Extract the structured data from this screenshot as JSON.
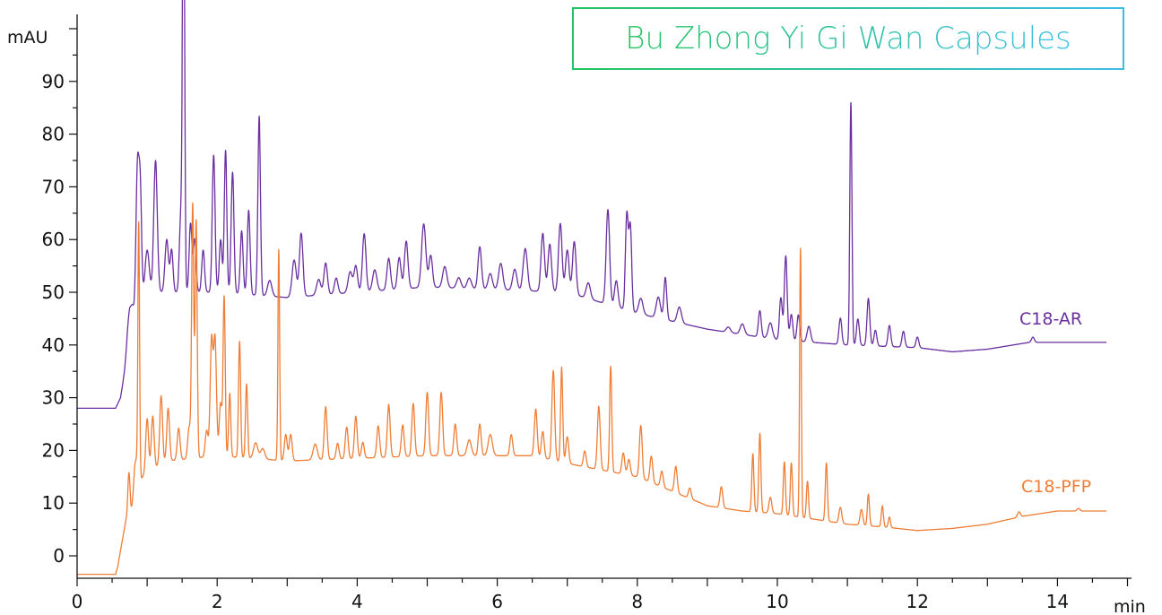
{
  "chart_data": {
    "type": "line",
    "title": "Bu Zhong Yi Gi Wan Capsules",
    "xlabel": "min",
    "ylabel": "mAU",
    "xlim": [
      0,
      15
    ],
    "ylim": [
      -5,
      100
    ],
    "x_ticks": [
      0,
      2,
      4,
      6,
      8,
      10,
      12,
      14
    ],
    "y_ticks": [
      0,
      10,
      20,
      30,
      40,
      50,
      60,
      70,
      80,
      90
    ],
    "grid": false,
    "legend": "inline labels at right end of traces",
    "series": [
      {
        "name": "C18-AR",
        "color": "#6a2fa0",
        "baseline": [
          [
            0,
            28
          ],
          [
            0.55,
            28
          ],
          [
            0.62,
            30
          ],
          [
            0.68,
            35
          ],
          [
            0.75,
            43
          ],
          [
            0.85,
            47
          ],
          [
            1.0,
            50
          ],
          [
            2.0,
            50
          ],
          [
            3.0,
            49
          ],
          [
            5.0,
            51
          ],
          [
            7.0,
            50
          ],
          [
            8.0,
            46
          ],
          [
            9.0,
            43
          ],
          [
            10.0,
            41
          ],
          [
            11.0,
            40
          ],
          [
            12.0,
            39.5
          ],
          [
            12.5,
            38.7
          ],
          [
            13.0,
            39.2
          ],
          [
            13.6,
            40.5
          ],
          [
            14.7,
            40.5
          ]
        ],
        "peaks": [
          [
            0.74,
            4,
            0.03
          ],
          [
            0.79,
            2,
            0.02
          ],
          [
            0.86,
            25,
            0.02
          ],
          [
            0.9,
            22,
            0.02
          ],
          [
            1.0,
            8,
            0.03
          ],
          [
            1.12,
            25,
            0.025
          ],
          [
            1.28,
            10,
            0.025
          ],
          [
            1.35,
            8,
            0.02
          ],
          [
            1.48,
            14,
            0.02
          ],
          [
            1.52,
            88,
            0.015
          ],
          [
            1.62,
            13,
            0.02
          ],
          [
            1.68,
            10,
            0.02
          ],
          [
            1.8,
            8,
            0.02
          ],
          [
            1.95,
            26,
            0.02
          ],
          [
            2.05,
            10,
            0.02
          ],
          [
            2.12,
            27,
            0.018
          ],
          [
            2.22,
            23,
            0.02
          ],
          [
            2.35,
            12,
            0.02
          ],
          [
            2.45,
            16,
            0.02
          ],
          [
            2.6,
            34,
            0.018
          ],
          [
            2.75,
            3,
            0.03
          ],
          [
            3.1,
            7,
            0.03
          ],
          [
            3.2,
            12,
            0.025
          ],
          [
            3.45,
            3,
            0.03
          ],
          [
            3.55,
            6,
            0.025
          ],
          [
            3.7,
            3,
            0.025
          ],
          [
            3.9,
            4,
            0.03
          ],
          [
            3.98,
            5,
            0.025
          ],
          [
            4.1,
            11,
            0.025
          ],
          [
            4.25,
            4,
            0.03
          ],
          [
            4.45,
            6,
            0.025
          ],
          [
            4.6,
            6,
            0.025
          ],
          [
            4.7,
            9,
            0.025
          ],
          [
            4.95,
            12,
            0.03
          ],
          [
            5.05,
            6,
            0.025
          ],
          [
            5.25,
            4,
            0.03
          ],
          [
            5.45,
            2,
            0.03
          ],
          [
            5.6,
            2,
            0.03
          ],
          [
            5.75,
            8,
            0.025
          ],
          [
            5.9,
            3,
            0.03
          ],
          [
            6.05,
            5,
            0.03
          ],
          [
            6.25,
            4,
            0.03
          ],
          [
            6.4,
            8,
            0.03
          ],
          [
            6.65,
            11,
            0.025
          ],
          [
            6.75,
            9,
            0.025
          ],
          [
            6.9,
            13,
            0.025
          ],
          [
            7.0,
            8,
            0.025
          ],
          [
            7.1,
            10,
            0.025
          ],
          [
            7.3,
            3,
            0.03
          ],
          [
            7.58,
            18,
            0.025
          ],
          [
            7.7,
            5,
            0.025
          ],
          [
            7.85,
            18,
            0.02
          ],
          [
            7.9,
            16,
            0.02
          ],
          [
            8.05,
            3,
            0.03
          ],
          [
            8.3,
            4,
            0.03
          ],
          [
            8.4,
            8,
            0.02
          ],
          [
            8.6,
            3,
            0.03
          ],
          [
            9.3,
            1,
            0.03
          ],
          [
            9.5,
            2,
            0.03
          ],
          [
            9.75,
            5,
            0.02
          ],
          [
            9.9,
            3,
            0.03
          ],
          [
            10.05,
            8,
            0.02
          ],
          [
            10.12,
            16,
            0.02
          ],
          [
            10.2,
            5,
            0.02
          ],
          [
            10.3,
            5,
            0.02
          ],
          [
            10.45,
            3,
            0.025
          ],
          [
            10.9,
            5,
            0.02
          ],
          [
            11.05,
            46,
            0.015
          ],
          [
            11.15,
            5,
            0.02
          ],
          [
            11.3,
            9,
            0.02
          ],
          [
            11.4,
            3,
            0.02
          ],
          [
            11.6,
            4,
            0.02
          ],
          [
            11.8,
            3,
            0.02
          ],
          [
            12.0,
            2,
            0.02
          ],
          [
            13.65,
            1,
            0.02
          ]
        ]
      },
      {
        "name": "C18-PFP",
        "color": "#ef7d35",
        "baseline": [
          [
            0,
            -3.5
          ],
          [
            0.55,
            -3.5
          ],
          [
            0.58,
            -2
          ],
          [
            0.62,
            1
          ],
          [
            0.7,
            7
          ],
          [
            0.8,
            9
          ],
          [
            0.88,
            14
          ],
          [
            1.0,
            16
          ],
          [
            1.3,
            18
          ],
          [
            2.0,
            19
          ],
          [
            3.0,
            18
          ],
          [
            5.0,
            19
          ],
          [
            6.5,
            19
          ],
          [
            7.2,
            17
          ],
          [
            8.0,
            15
          ],
          [
            9.0,
            9.5
          ],
          [
            9.5,
            8.5
          ],
          [
            10.0,
            8
          ],
          [
            10.5,
            7
          ],
          [
            11.0,
            6
          ],
          [
            11.5,
            5.5
          ],
          [
            12.0,
            4.8
          ],
          [
            12.5,
            5.2
          ],
          [
            13.0,
            6
          ],
          [
            13.5,
            7.5
          ],
          [
            14.0,
            8.5
          ],
          [
            14.7,
            8.5
          ]
        ],
        "peaks": [
          [
            0.74,
            8,
            0.015
          ],
          [
            0.82,
            5,
            0.02
          ],
          [
            0.85,
            4,
            0.02
          ],
          [
            0.88,
            48,
            0.012
          ],
          [
            1.0,
            10,
            0.02
          ],
          [
            1.08,
            10,
            0.02
          ],
          [
            1.2,
            13,
            0.02
          ],
          [
            1.3,
            10,
            0.02
          ],
          [
            1.45,
            6,
            0.02
          ],
          [
            1.6,
            6,
            0.02
          ],
          [
            1.65,
            48,
            0.015
          ],
          [
            1.7,
            45,
            0.015
          ],
          [
            1.85,
            5,
            0.02
          ],
          [
            1.92,
            22,
            0.02
          ],
          [
            1.97,
            22,
            0.02
          ],
          [
            2.05,
            10,
            0.02
          ],
          [
            2.1,
            30,
            0.015
          ],
          [
            2.18,
            12,
            0.015
          ],
          [
            2.32,
            22,
            0.015
          ],
          [
            2.42,
            14,
            0.015
          ],
          [
            2.55,
            3,
            0.03
          ],
          [
            2.65,
            2,
            0.03
          ],
          [
            2.88,
            40,
            0.012
          ],
          [
            2.98,
            5,
            0.02
          ],
          [
            3.05,
            5,
            0.02
          ],
          [
            3.4,
            3,
            0.03
          ],
          [
            3.55,
            10,
            0.02
          ],
          [
            3.72,
            3,
            0.02
          ],
          [
            3.85,
            6,
            0.02
          ],
          [
            3.98,
            8,
            0.02
          ],
          [
            4.08,
            3,
            0.02
          ],
          [
            4.3,
            6,
            0.02
          ],
          [
            4.45,
            10,
            0.02
          ],
          [
            4.65,
            6,
            0.02
          ],
          [
            4.8,
            10,
            0.02
          ],
          [
            5.0,
            12,
            0.02
          ],
          [
            5.2,
            12,
            0.02
          ],
          [
            5.4,
            6,
            0.02
          ],
          [
            5.6,
            3,
            0.03
          ],
          [
            5.75,
            6,
            0.02
          ],
          [
            5.9,
            4,
            0.03
          ],
          [
            6.2,
            4,
            0.02
          ],
          [
            6.55,
            9,
            0.02
          ],
          [
            6.65,
            5,
            0.02
          ],
          [
            6.8,
            17,
            0.02
          ],
          [
            6.92,
            18,
            0.015
          ],
          [
            7.0,
            5,
            0.02
          ],
          [
            7.25,
            3,
            0.02
          ],
          [
            7.45,
            12,
            0.02
          ],
          [
            7.62,
            20,
            0.015
          ],
          [
            7.8,
            4,
            0.02
          ],
          [
            7.88,
            3,
            0.02
          ],
          [
            8.05,
            10,
            0.02
          ],
          [
            8.2,
            5,
            0.02
          ],
          [
            8.35,
            3,
            0.02
          ],
          [
            8.55,
            5,
            0.02
          ],
          [
            8.75,
            2,
            0.02
          ],
          [
            9.2,
            4,
            0.02
          ],
          [
            9.65,
            11,
            0.015
          ],
          [
            9.75,
            15,
            0.015
          ],
          [
            9.9,
            3,
            0.02
          ],
          [
            10.1,
            10,
            0.015
          ],
          [
            10.2,
            10,
            0.015
          ],
          [
            10.33,
            51,
            0.012
          ],
          [
            10.43,
            7,
            0.015
          ],
          [
            10.7,
            11,
            0.015
          ],
          [
            10.9,
            3,
            0.02
          ],
          [
            11.2,
            3,
            0.02
          ],
          [
            11.3,
            6,
            0.015
          ],
          [
            11.5,
            4,
            0.015
          ],
          [
            11.6,
            2,
            0.015
          ],
          [
            13.45,
            1,
            0.02
          ],
          [
            14.3,
            0.5,
            0.02
          ]
        ]
      }
    ]
  }
}
